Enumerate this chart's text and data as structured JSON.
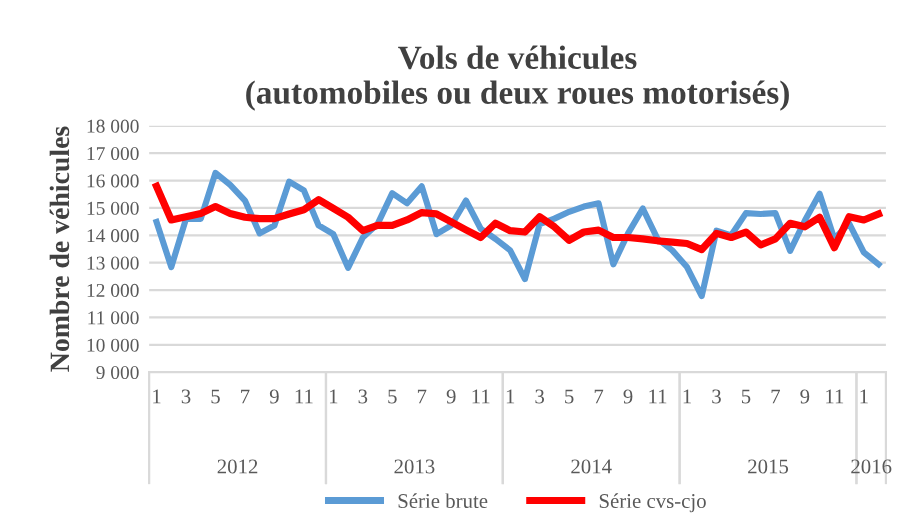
{
  "chart_data": {
    "type": "line",
    "title": "Vols de véhicules\n(automobiles ou deux roues motorisés)",
    "ylabel": "Nombre de véhicules",
    "categories": [
      "1",
      null,
      "3",
      null,
      "5",
      null,
      "7",
      null,
      "9",
      null,
      "11",
      null,
      "1",
      null,
      "3",
      null,
      "5",
      null,
      "7",
      null,
      "9",
      null,
      "11",
      null,
      "1",
      null,
      "3",
      null,
      "5",
      null,
      "7",
      null,
      "9",
      null,
      "11",
      null,
      "1",
      null,
      "3",
      null,
      "5",
      null,
      "7",
      null,
      "9",
      null,
      "11",
      null,
      "1",
      null
    ],
    "annotations": [
      "2012",
      "2013",
      "2014",
      "2015",
      "2016"
    ],
    "series": [
      {
        "name": "Série brute",
        "color": "#5b9bd5",
        "values": [
          14490,
          12840,
          14600,
          14600,
          16280,
          15840,
          15270,
          14070,
          14360,
          15960,
          15640,
          14360,
          14040,
          12810,
          13920,
          14410,
          15540,
          15170,
          15790,
          14040,
          14360,
          15270,
          14240,
          13870,
          13450,
          12400,
          14410,
          14610,
          14860,
          15050,
          15170,
          12940,
          14070,
          14980,
          13870,
          13450,
          12840,
          11780,
          14170,
          14000,
          14810,
          14780,
          14810,
          13430,
          14540,
          15520,
          13870,
          14440,
          13380,
          12940
        ]
      },
      {
        "name": "Série cvs-cjo",
        "color": "#ff0000",
        "values": [
          15790,
          14560,
          14680,
          14800,
          15050,
          14800,
          14660,
          14610,
          14610,
          14780,
          14930,
          15300,
          14980,
          14660,
          14170,
          14360,
          14360,
          14560,
          14830,
          14780,
          14490,
          14200,
          13920,
          14440,
          14170,
          14120,
          14680,
          14310,
          13820,
          14120,
          14190,
          13920,
          13920,
          13870,
          13800,
          13750,
          13700,
          13480,
          14070,
          13920,
          14120,
          13650,
          13870,
          14440,
          14310,
          14660,
          13550,
          14680,
          14560,
          14780
        ]
      }
    ],
    "ylim": [
      9000,
      18000
    ],
    "yticks": [
      {
        "value": 9000,
        "label": "9 000"
      },
      {
        "value": 10000,
        "label": "10 000"
      },
      {
        "value": 11000,
        "label": "11 000"
      },
      {
        "value": 12000,
        "label": "12 000"
      },
      {
        "value": 13000,
        "label": "13 000"
      },
      {
        "value": 14000,
        "label": "14 000"
      },
      {
        "value": 15000,
        "label": "15 000"
      },
      {
        "value": 16000,
        "label": "16 000"
      },
      {
        "value": 17000,
        "label": "17 000"
      },
      {
        "value": 18000,
        "label": "18 000"
      }
    ],
    "grid": "y",
    "legend": "bottom",
    "marker": "none",
    "line_style": "solid"
  }
}
